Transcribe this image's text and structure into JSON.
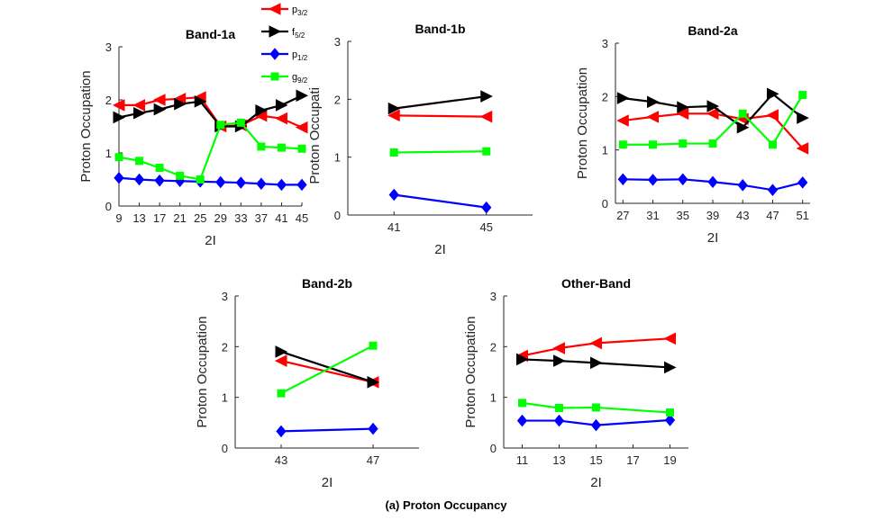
{
  "caption": "(a) Proton Occupancy",
  "legend": [
    {
      "key": "p32",
      "base": "p",
      "sub": "3/2",
      "color": "#ff0000",
      "marker": "triangle-left"
    },
    {
      "key": "f52",
      "base": "f",
      "sub": "5/2",
      "color": "#000000",
      "marker": "triangle-right"
    },
    {
      "key": "p12",
      "base": "p",
      "sub": "1/2",
      "color": "#0000ff",
      "marker": "diamond"
    },
    {
      "key": "g92",
      "base": "g",
      "sub": "9/2",
      "color": "#00ff00",
      "marker": "square"
    }
  ],
  "chart_data": [
    {
      "type": "line",
      "title": "Band-1a",
      "xlabel": "2I",
      "ylabel": "Proton Occupation",
      "ylim": [
        0,
        3
      ],
      "yticks": [
        0,
        1,
        2,
        3
      ],
      "xlim": [
        9,
        45
      ],
      "xticks": [
        9,
        13,
        17,
        21,
        25,
        29,
        33,
        37,
        41,
        45
      ],
      "x": [
        9,
        13,
        17,
        21,
        25,
        29,
        33,
        37,
        41,
        45
      ],
      "series": [
        {
          "name": "p3/2",
          "values": [
            1.9,
            1.9,
            2.0,
            2.02,
            2.05,
            1.5,
            1.52,
            1.7,
            1.65,
            1.48
          ]
        },
        {
          "name": "f5/2",
          "values": [
            1.67,
            1.75,
            1.82,
            1.92,
            1.97,
            1.5,
            1.5,
            1.8,
            1.9,
            2.08
          ]
        },
        {
          "name": "p1/2",
          "values": [
            0.53,
            0.5,
            0.48,
            0.47,
            0.46,
            0.45,
            0.44,
            0.42,
            0.4,
            0.4
          ]
        },
        {
          "name": "g9/2",
          "values": [
            0.92,
            0.85,
            0.72,
            0.57,
            0.5,
            1.53,
            1.57,
            1.12,
            1.1,
            1.08
          ]
        }
      ]
    },
    {
      "type": "line",
      "title": "Band-1b",
      "xlabel": "2I",
      "ylabel": "Proton Occupation",
      "ylim": [
        0,
        3
      ],
      "yticks": [
        0,
        1,
        2,
        3
      ],
      "xlim": [
        39,
        47
      ],
      "xticks": [
        41,
        45
      ],
      "x": [
        41,
        45
      ],
      "series": [
        {
          "name": "p3/2",
          "values": [
            1.72,
            1.7
          ]
        },
        {
          "name": "f5/2",
          "values": [
            1.84,
            2.05
          ]
        },
        {
          "name": "p1/2",
          "values": [
            0.35,
            0.13
          ]
        },
        {
          "name": "g9/2",
          "values": [
            1.08,
            1.1
          ]
        }
      ]
    },
    {
      "type": "line",
      "title": "Band-2a",
      "xlabel": "2I",
      "ylabel": "Proton Occupation",
      "ylim": [
        0,
        3
      ],
      "yticks": [
        0,
        1,
        2,
        3
      ],
      "xlim": [
        26,
        52
      ],
      "xticks": [
        27,
        31,
        35,
        39,
        43,
        47,
        51
      ],
      "x": [
        27,
        31,
        35,
        39,
        43,
        47,
        51
      ],
      "series": [
        {
          "name": "p3/2",
          "values": [
            1.55,
            1.62,
            1.68,
            1.68,
            1.58,
            1.65,
            1.03
          ]
        },
        {
          "name": "f5/2",
          "values": [
            1.97,
            1.9,
            1.8,
            1.82,
            1.42,
            2.05,
            1.6
          ]
        },
        {
          "name": "p1/2",
          "values": [
            0.45,
            0.44,
            0.45,
            0.4,
            0.34,
            0.25,
            0.39
          ]
        },
        {
          "name": "g9/2",
          "values": [
            1.1,
            1.1,
            1.12,
            1.12,
            1.68,
            1.1,
            2.03
          ]
        }
      ]
    },
    {
      "type": "line",
      "title": "Band-2b",
      "xlabel": "2I",
      "ylabel": "Proton Occupation",
      "ylim": [
        0,
        3
      ],
      "yticks": [
        0,
        1,
        2,
        3
      ],
      "xlim": [
        41,
        49
      ],
      "xticks": [
        43,
        47
      ],
      "x": [
        43,
        47
      ],
      "series": [
        {
          "name": "p3/2",
          "values": [
            1.72,
            1.3
          ]
        },
        {
          "name": "f5/2",
          "values": [
            1.9,
            1.3
          ]
        },
        {
          "name": "p1/2",
          "values": [
            0.33,
            0.38
          ]
        },
        {
          "name": "g9/2",
          "values": [
            1.08,
            2.02
          ]
        }
      ]
    },
    {
      "type": "line",
      "title": "Other-Band",
      "xlabel": "2I",
      "ylabel": "Proton Occupation",
      "ylim": [
        0,
        3
      ],
      "yticks": [
        0,
        1,
        2,
        3
      ],
      "xlim": [
        10,
        20
      ],
      "xticks": [
        11,
        13,
        15,
        17,
        19
      ],
      "x": [
        11,
        13,
        15,
        19
      ],
      "series": [
        {
          "name": "p3/2",
          "values": [
            1.82,
            1.97,
            2.07,
            2.16
          ]
        },
        {
          "name": "f5/2",
          "values": [
            1.75,
            1.72,
            1.68,
            1.59
          ]
        },
        {
          "name": "p1/2",
          "values": [
            0.54,
            0.54,
            0.45,
            0.55
          ]
        },
        {
          "name": "g9/2",
          "values": [
            0.89,
            0.79,
            0.8,
            0.7
          ]
        }
      ]
    }
  ]
}
